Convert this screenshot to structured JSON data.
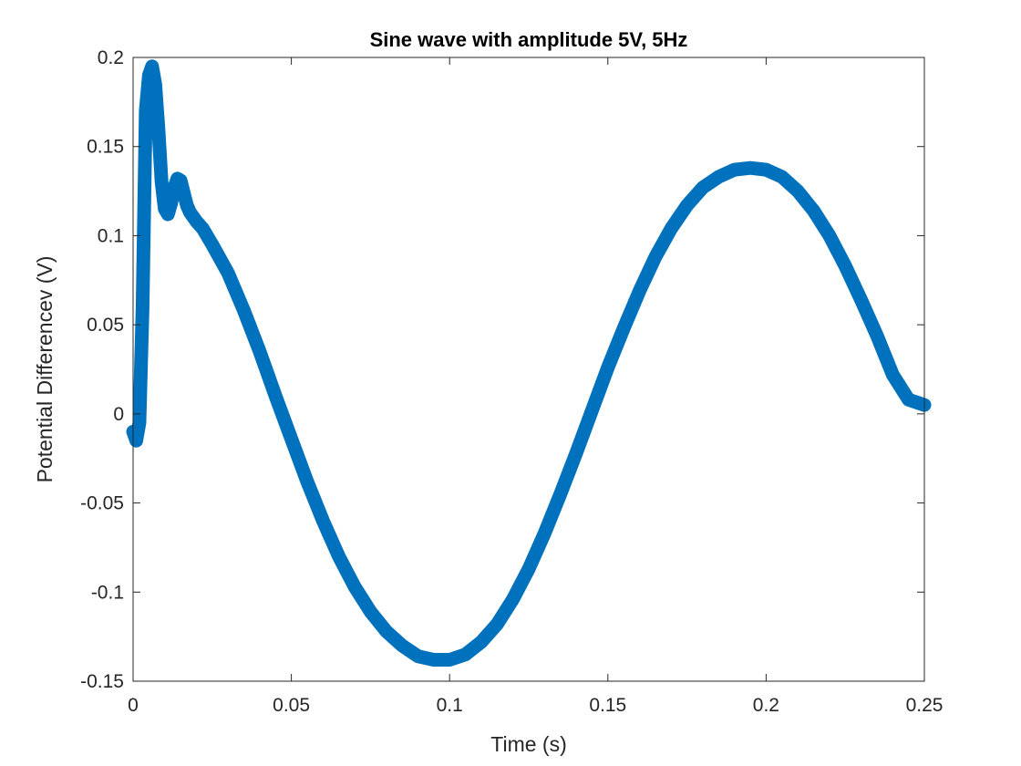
{
  "chart_data": {
    "type": "line",
    "title": "Sine wave with amplitude 5V, 5Hz",
    "xlabel": "Time (s)",
    "ylabel": "Potential Differencev (V)",
    "xlim": [
      0,
      0.25
    ],
    "ylim": [
      -0.15,
      0.2
    ],
    "xticks": [
      0,
      0.05,
      0.1,
      0.15,
      0.2,
      0.25
    ],
    "xtick_labels": [
      "0",
      "0.05",
      "0.1",
      "0.15",
      "0.2",
      "0.25"
    ],
    "yticks": [
      -0.15,
      -0.1,
      -0.05,
      0,
      0.05,
      0.1,
      0.15,
      0.2
    ],
    "ytick_labels": [
      "-0.15",
      "-0.1",
      "-0.05",
      "0",
      "0.05",
      "0.1",
      "0.15",
      "0.2"
    ],
    "grid": false,
    "series": [
      {
        "color": "#0072BD",
        "marker": "asterisk",
        "x": [
          0,
          0.001,
          0.002,
          0.003,
          0.004,
          0.005,
          0.006,
          0.007,
          0.008,
          0.009,
          0.01,
          0.011,
          0.012,
          0.013,
          0.014,
          0.015,
          0.016,
          0.017,
          0.018,
          0.02,
          0.022,
          0.025,
          0.03,
          0.035,
          0.04,
          0.045,
          0.05,
          0.055,
          0.06,
          0.065,
          0.07,
          0.075,
          0.08,
          0.085,
          0.09,
          0.095,
          0.1,
          0.105,
          0.11,
          0.115,
          0.12,
          0.125,
          0.13,
          0.135,
          0.14,
          0.145,
          0.15,
          0.155,
          0.16,
          0.165,
          0.17,
          0.175,
          0.18,
          0.185,
          0.19,
          0.195,
          0.2,
          0.205,
          0.21,
          0.215,
          0.22,
          0.225,
          0.23,
          0.235,
          0.24,
          0.245,
          0.25
        ],
        "y": [
          -0.01,
          -0.015,
          -0.005,
          0.06,
          0.17,
          0.19,
          0.195,
          0.185,
          0.16,
          0.13,
          0.115,
          0.112,
          0.118,
          0.127,
          0.132,
          0.131,
          0.124,
          0.117,
          0.113,
          0.108,
          0.104,
          0.095,
          0.079,
          0.058,
          0.035,
          0.01,
          -0.014,
          -0.038,
          -0.06,
          -0.08,
          -0.097,
          -0.111,
          -0.122,
          -0.13,
          -0.136,
          -0.138,
          -0.138,
          -0.135,
          -0.128,
          -0.118,
          -0.104,
          -0.087,
          -0.067,
          -0.045,
          -0.022,
          0.002,
          0.026,
          0.048,
          0.069,
          0.088,
          0.104,
          0.117,
          0.127,
          0.133,
          0.137,
          0.138,
          0.137,
          0.133,
          0.125,
          0.114,
          0.1,
          0.083,
          0.064,
          0.044,
          0.022,
          0.008,
          0.005
        ]
      }
    ]
  }
}
